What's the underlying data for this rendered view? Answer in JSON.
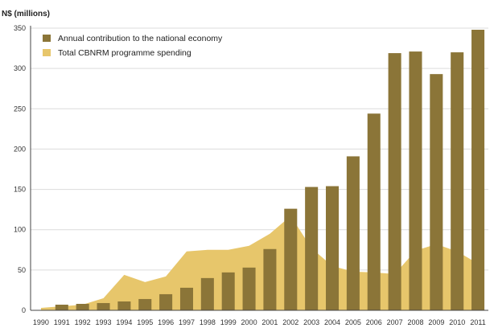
{
  "chart_data": {
    "type": "bar",
    "title": "",
    "xlabel": "",
    "ylabel": "N$ (millions)",
    "ylim": [
      0,
      350
    ],
    "yticks": [
      0,
      50,
      100,
      150,
      200,
      250,
      300,
      350
    ],
    "grid": true,
    "legend_position": "top-left",
    "categories": [
      "1990",
      "1991",
      "1992",
      "1993",
      "1994",
      "1995",
      "1996",
      "1997",
      "1998",
      "1999",
      "2000",
      "2001",
      "2002",
      "2003",
      "2004",
      "2005",
      "2006",
      "2007",
      "2008",
      "2009",
      "2010",
      "2011"
    ],
    "series": [
      {
        "name": "Annual contribution to the national economy",
        "type": "bar",
        "color": "#8b7538",
        "values": [
          0,
          7,
          8,
          9,
          11,
          14,
          20,
          28,
          40,
          47,
          53,
          76,
          126,
          153,
          154,
          191,
          244,
          319,
          321,
          293,
          320,
          348
        ]
      },
      {
        "name": "Total CBNRM programme spending",
        "type": "area",
        "color": "#e7c66b",
        "values": [
          3,
          5,
          7,
          15,
          44,
          35,
          42,
          73,
          75,
          75,
          80,
          95,
          117,
          77,
          55,
          48,
          47,
          45,
          74,
          82,
          73,
          58
        ]
      }
    ]
  }
}
